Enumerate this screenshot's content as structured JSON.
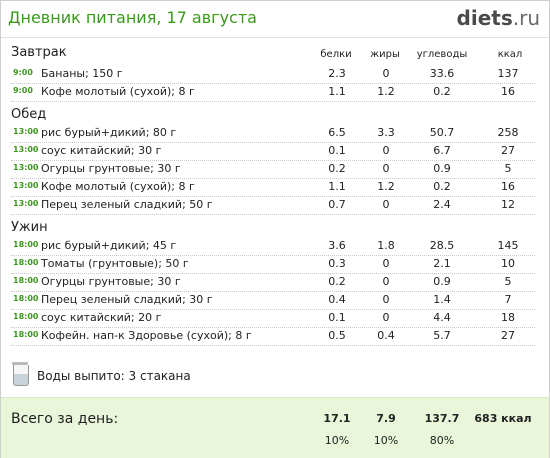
{
  "header": {
    "title": "Дневник питания, 17 августа",
    "logo_main": "diets",
    "logo_suffix": ".ru"
  },
  "columns": {
    "protein": "белки",
    "fat": "жиры",
    "carbs": "углеводы",
    "kcal": "ккал"
  },
  "meals": [
    {
      "title": "Завтрак",
      "items": [
        {
          "time": "9:00",
          "name": "Бананы; 150 г",
          "protein": "2.3",
          "fat": "0",
          "carbs": "33.6",
          "kcal": "137"
        },
        {
          "time": "9:00",
          "name": "Кофе молотый (сухой); 8 г",
          "protein": "1.1",
          "fat": "1.2",
          "carbs": "0.2",
          "kcal": "16"
        }
      ]
    },
    {
      "title": "Обед",
      "items": [
        {
          "time": "13:00",
          "name": "рис бурый+дикий; 80 г",
          "protein": "6.5",
          "fat": "3.3",
          "carbs": "50.7",
          "kcal": "258"
        },
        {
          "time": "13:00",
          "name": "соус китайский; 30 г",
          "protein": "0.1",
          "fat": "0",
          "carbs": "6.7",
          "kcal": "27"
        },
        {
          "time": "13:00",
          "name": "Огурцы грунтовые; 30 г",
          "protein": "0.2",
          "fat": "0",
          "carbs": "0.9",
          "kcal": "5"
        },
        {
          "time": "13:00",
          "name": "Кофе молотый (сухой); 8 г",
          "protein": "1.1",
          "fat": "1.2",
          "carbs": "0.2",
          "kcal": "16"
        },
        {
          "time": "13:00",
          "name": "Перец зеленый сладкий; 50 г",
          "protein": "0.7",
          "fat": "0",
          "carbs": "2.4",
          "kcal": "12"
        }
      ]
    },
    {
      "title": "Ужин",
      "items": [
        {
          "time": "18:00",
          "name": "рис бурый+дикий; 45 г",
          "protein": "3.6",
          "fat": "1.8",
          "carbs": "28.5",
          "kcal": "145"
        },
        {
          "time": "18:00",
          "name": "Томаты (грунтовые); 50 г",
          "protein": "0.3",
          "fat": "0",
          "carbs": "2.1",
          "kcal": "10"
        },
        {
          "time": "18:00",
          "name": "Огурцы грунтовые; 30 г",
          "protein": "0.2",
          "fat": "0",
          "carbs": "0.9",
          "kcal": "5"
        },
        {
          "time": "18:00",
          "name": "Перец зеленый сладкий; 30 г",
          "protein": "0.4",
          "fat": "0",
          "carbs": "1.4",
          "kcal": "7"
        },
        {
          "time": "18:00",
          "name": "соус китайский; 20 г",
          "protein": "0.1",
          "fat": "0",
          "carbs": "4.4",
          "kcal": "18"
        },
        {
          "time": "18:00",
          "name": "Кофейн. нап-к Здоровье (сухой); 8 г",
          "protein": "0.5",
          "fat": "0.4",
          "carbs": "5.7",
          "kcal": "27"
        }
      ]
    }
  ],
  "water": {
    "text": "Воды выпито: 3 стакана",
    "icon": "glass-icon"
  },
  "totals": {
    "label": "Всего за день:",
    "protein": "17.1",
    "fat": "7.9",
    "carbs": "137.7",
    "kcal": "683 ккал",
    "protein_pct": "10%",
    "fat_pct": "10%",
    "carbs_pct": "80%"
  },
  "colors": {
    "accent_green": "#3a9a1a",
    "totals_bg": "#e9f6d9"
  }
}
